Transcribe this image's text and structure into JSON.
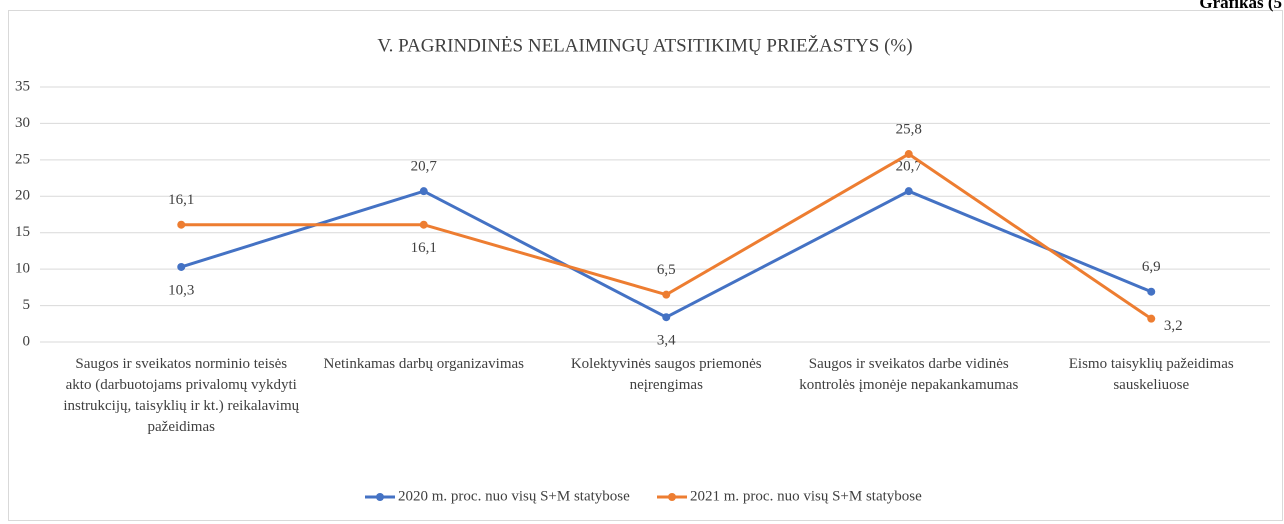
{
  "chart_data": {
    "type": "line",
    "title": "V. PAGRINDINĖS  NELAIMINGŲ  ATSITIKIMŲ   PRIEŽASTYS (%)",
    "annotations": [
      "Grafikas (5"
    ],
    "categories": [
      "Saugos ir sveikatos norminio teisės akto (darbuotojams privalomų vykdyti instrukcijų, taisyklių ir kt.) reikalavimų pažeidimas",
      "Netinkamas darbų organizavimas",
      "Kolektyvinės saugos priemonės neįrengimas",
      "Saugos ir sveikatos darbe vidinės kontrolės įmonėje nepakankamumas",
      "Eismo taisyklių pažeidimas sauskeliuose"
    ],
    "series": [
      {
        "name": "2020 m. proc. nuo visų S+M statybose",
        "color": "#4472c4",
        "values": [
          10.3,
          20.7,
          3.4,
          20.7,
          6.9
        ],
        "value_labels": [
          "10,3",
          "20,7",
          "3,4",
          "20,7",
          "6,9"
        ]
      },
      {
        "name": "2021 m. proc. nuo visų S+M statybose",
        "color": "#ed7d31",
        "values": [
          16.1,
          16.1,
          6.5,
          25.8,
          3.2
        ],
        "value_labels": [
          "16,1",
          "16,1",
          "6,5",
          "25,8",
          "3,2"
        ]
      }
    ],
    "ylim": [
      0,
      35
    ],
    "yticks": [
      0,
      5,
      10,
      15,
      20,
      25,
      30,
      35
    ],
    "grid": true,
    "legend": "bottom"
  }
}
